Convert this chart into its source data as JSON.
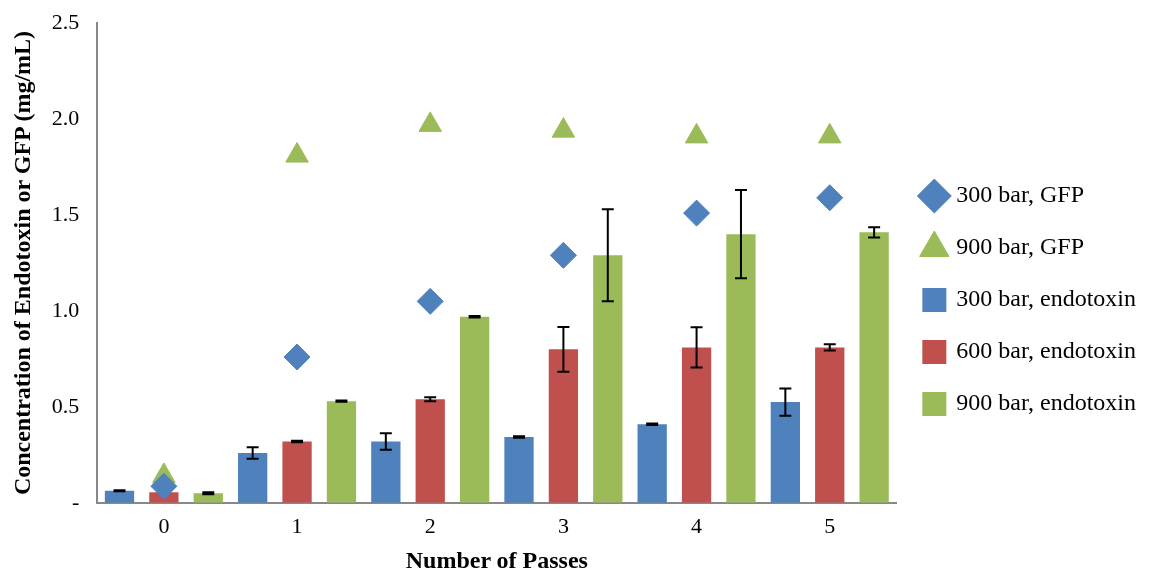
{
  "chart_data": {
    "type": "bar",
    "xlabel": "Number of Passes",
    "ylabel": "Concentration of Endotoxin or GFP (mg/mL)",
    "categories": [
      "0",
      "1",
      "2",
      "3",
      "4",
      "5"
    ],
    "series": [
      {
        "name": "300 bar, endotoxin",
        "color": "#4f81bd",
        "values": [
          0.063,
          0.26,
          0.32,
          0.343,
          0.41,
          0.525
        ],
        "errors": [
          0.003,
          0.03,
          0.043,
          0.004,
          0.004,
          0.071
        ]
      },
      {
        "name": "600 bar, endotoxin",
        "color": "#c0504d",
        "values": [
          0.055,
          0.32,
          0.54,
          0.8,
          0.81,
          0.81
        ],
        "errors": [
          null,
          0.004,
          0.01,
          0.117,
          0.105,
          0.016
        ]
      },
      {
        "name": "900 bar, endotoxin",
        "color": "#9bbb59",
        "values": [
          0.05,
          0.53,
          0.97,
          1.29,
          1.4,
          1.41
        ],
        "errors": [
          0.005,
          0.003,
          0.004,
          0.24,
          0.23,
          0.027
        ]
      },
      {
        "name": "300 bar, GFP",
        "type": "scatter",
        "marker": "diamond",
        "color": "#4f81bd",
        "x": [
          "0",
          "1",
          "2",
          "3",
          "4",
          "5"
        ],
        "values": [
          0.086,
          0.76,
          1.05,
          1.29,
          1.51,
          1.59
        ]
      },
      {
        "name": "900 bar, GFP",
        "type": "scatter",
        "marker": "triangle",
        "color": "#9bbb59",
        "x": [
          "0",
          "1",
          "2",
          "3",
          "4",
          "5"
        ],
        "values": [
          0.14,
          1.81,
          1.97,
          1.94,
          1.91,
          1.91
        ]
      }
    ],
    "ylim": [
      0,
      2.5
    ],
    "yticks": [
      {
        "value": 0,
        "label": "-"
      },
      {
        "value": 0.5,
        "label": "0.5"
      },
      {
        "value": 1,
        "label": "1.0"
      },
      {
        "value": 1.5,
        "label": "1.5"
      },
      {
        "value": 2,
        "label": "2.0"
      },
      2.5
    ],
    "grid": false,
    "legend": "right"
  }
}
